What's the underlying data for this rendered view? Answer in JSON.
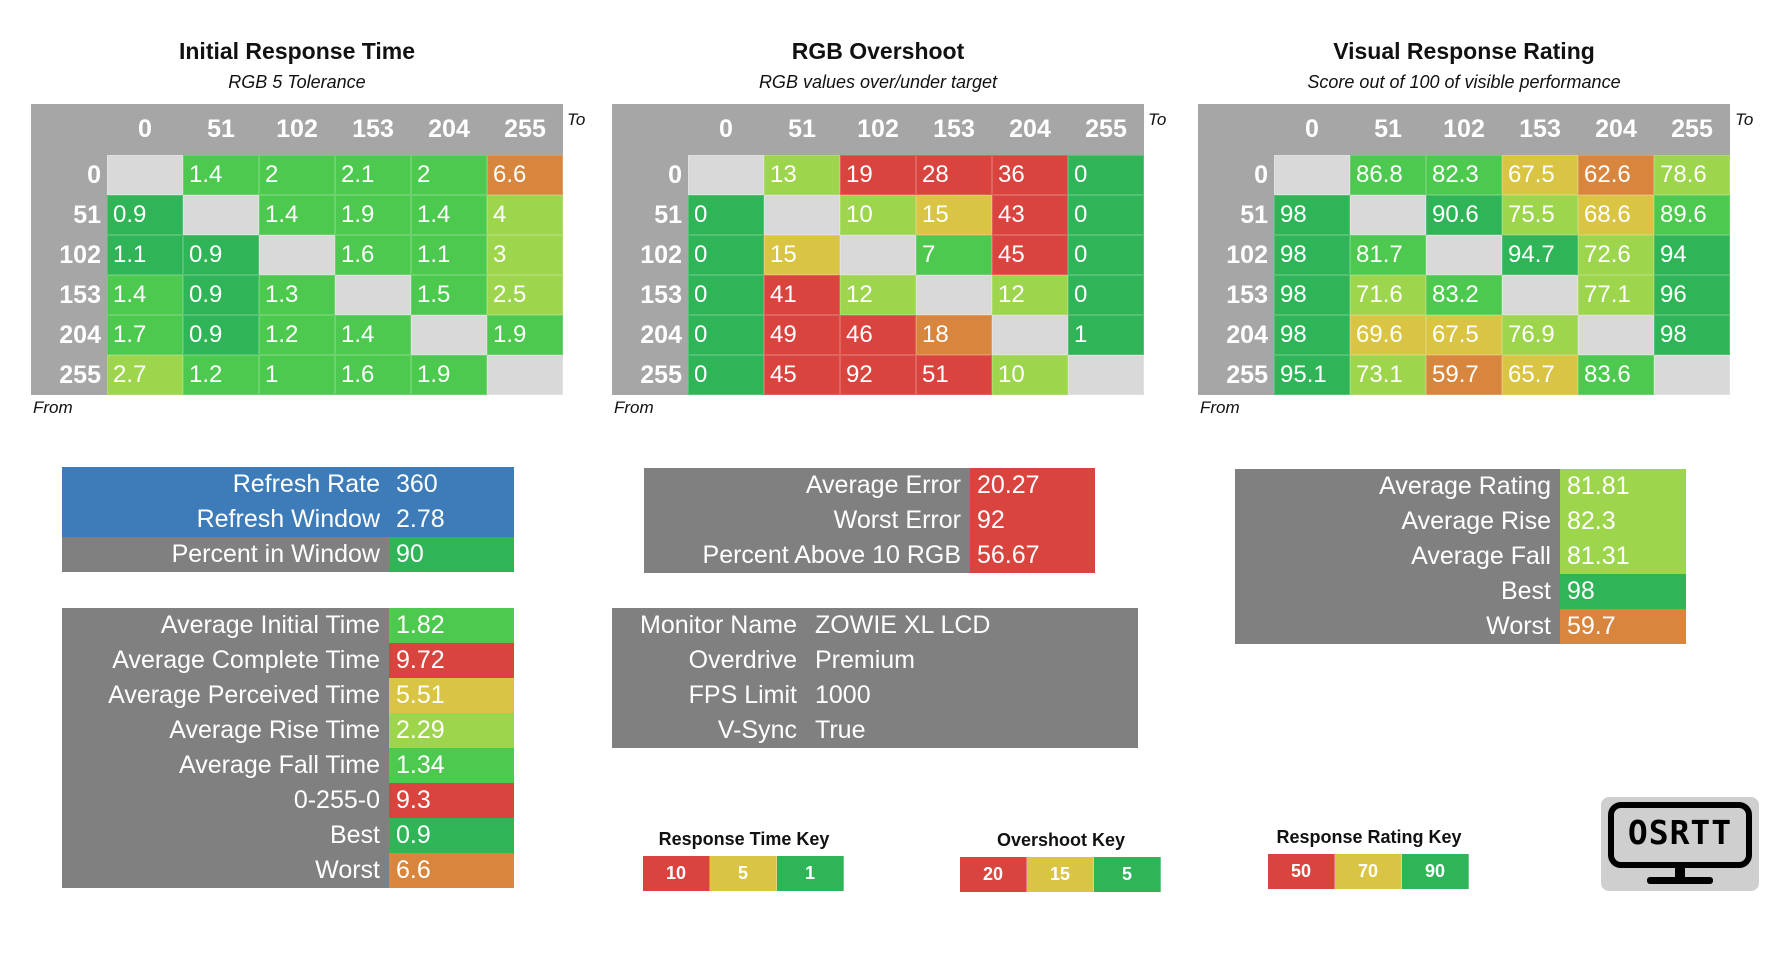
{
  "levels": [
    "0",
    "51",
    "102",
    "153",
    "204",
    "255"
  ],
  "axis": {
    "to": "To",
    "from": "From"
  },
  "colors": {
    "red": "#d9443f",
    "orange": "#d8853e",
    "yellow": "#d9c444",
    "lime": "#9dd54c",
    "green": "#4ec94f",
    "dkgreen": "#2fb457",
    "blue": "#3d7cb8",
    "gray": "#808080",
    "header": "#a6a6a6",
    "diag": "#d9d9d9"
  },
  "chart_data": [
    {
      "type": "heatmap",
      "title": "Initial Response Time",
      "subtitle": "RGB 5 Tolerance",
      "xlabel": "To",
      "ylabel": "From",
      "x": [
        "0",
        "51",
        "102",
        "153",
        "204",
        "255"
      ],
      "y": [
        "0",
        "51",
        "102",
        "153",
        "204",
        "255"
      ],
      "values": [
        [
          "",
          "1.4",
          "2",
          "2.1",
          "2",
          "6.6"
        ],
        [
          "0.9",
          "",
          "1.4",
          "1.9",
          "1.4",
          "4"
        ],
        [
          "1.1",
          "0.9",
          "",
          "1.6",
          "1.1",
          "3"
        ],
        [
          "1.4",
          "0.9",
          "1.3",
          "",
          "1.5",
          "2.5"
        ],
        [
          "1.7",
          "0.9",
          "1.2",
          "1.4",
          "",
          "1.9"
        ],
        [
          "2.7",
          "1.2",
          "1",
          "1.6",
          "1.9",
          ""
        ]
      ],
      "colors": [
        [
          "diag",
          "green",
          "green",
          "green",
          "green",
          "orange"
        ],
        [
          "dkgreen",
          "diag",
          "green",
          "green",
          "green",
          "lime"
        ],
        [
          "dkgreen",
          "dkgreen",
          "diag",
          "green",
          "green",
          "lime"
        ],
        [
          "green",
          "dkgreen",
          "green",
          "diag",
          "green",
          "lime"
        ],
        [
          "green",
          "dkgreen",
          "green",
          "green",
          "diag",
          "green"
        ],
        [
          "lime",
          "green",
          "green",
          "green",
          "green",
          "diag"
        ]
      ]
    },
    {
      "type": "heatmap",
      "title": "RGB Overshoot",
      "subtitle": "RGB values over/under target",
      "xlabel": "To",
      "ylabel": "From",
      "x": [
        "0",
        "51",
        "102",
        "153",
        "204",
        "255"
      ],
      "y": [
        "0",
        "51",
        "102",
        "153",
        "204",
        "255"
      ],
      "values": [
        [
          "",
          "13",
          "19",
          "28",
          "36",
          "0"
        ],
        [
          "0",
          "",
          "10",
          "15",
          "43",
          "0"
        ],
        [
          "0",
          "15",
          "",
          "7",
          "45",
          "0"
        ],
        [
          "0",
          "41",
          "12",
          "",
          "12",
          "0"
        ],
        [
          "0",
          "49",
          "46",
          "18",
          "",
          "1"
        ],
        [
          "0",
          "45",
          "92",
          "51",
          "10",
          ""
        ]
      ],
      "colors": [
        [
          "diag",
          "lime",
          "red",
          "red",
          "red",
          "dkgreen"
        ],
        [
          "dkgreen",
          "diag",
          "lime",
          "yellow",
          "red",
          "dkgreen"
        ],
        [
          "dkgreen",
          "yellow",
          "diag",
          "green",
          "red",
          "dkgreen"
        ],
        [
          "dkgreen",
          "red",
          "lime",
          "diag",
          "lime",
          "dkgreen"
        ],
        [
          "dkgreen",
          "red",
          "red",
          "orange",
          "diag",
          "dkgreen"
        ],
        [
          "dkgreen",
          "red",
          "red",
          "red",
          "lime",
          "diag"
        ]
      ]
    },
    {
      "type": "heatmap",
      "title": "Visual Response Rating",
      "subtitle": "Score out of 100 of visible performance",
      "xlabel": "To",
      "ylabel": "From",
      "x": [
        "0",
        "51",
        "102",
        "153",
        "204",
        "255"
      ],
      "y": [
        "0",
        "51",
        "102",
        "153",
        "204",
        "255"
      ],
      "values": [
        [
          "",
          "86.8",
          "82.3",
          "67.5",
          "62.6",
          "78.6"
        ],
        [
          "98",
          "",
          "90.6",
          "75.5",
          "68.6",
          "89.6"
        ],
        [
          "98",
          "81.7",
          "",
          "94.7",
          "72.6",
          "94"
        ],
        [
          "98",
          "71.6",
          "83.2",
          "",
          "77.1",
          "96"
        ],
        [
          "98",
          "69.6",
          "67.5",
          "76.9",
          "",
          "98"
        ],
        [
          "95.1",
          "73.1",
          "59.7",
          "65.7",
          "83.6",
          ""
        ]
      ],
      "colors": [
        [
          "diag",
          "green",
          "green",
          "yellow",
          "orange",
          "lime"
        ],
        [
          "dkgreen",
          "diag",
          "dkgreen",
          "lime",
          "yellow",
          "green"
        ],
        [
          "dkgreen",
          "green",
          "diag",
          "dkgreen",
          "lime",
          "dkgreen"
        ],
        [
          "dkgreen",
          "lime",
          "green",
          "diag",
          "lime",
          "dkgreen"
        ],
        [
          "dkgreen",
          "yellow",
          "yellow",
          "lime",
          "diag",
          "dkgreen"
        ],
        [
          "dkgreen",
          "lime",
          "orange",
          "yellow",
          "green",
          "diag"
        ]
      ]
    }
  ],
  "refresh": {
    "rows": [
      {
        "label": "Refresh Rate",
        "value": "360",
        "bg": "blue",
        "vbg": "blue"
      },
      {
        "label": "Refresh Window",
        "value": "2.78",
        "bg": "blue",
        "vbg": "blue"
      },
      {
        "label": "Percent in Window",
        "value": "90",
        "bg": "gray",
        "vbg": "dkgreen"
      }
    ]
  },
  "times": {
    "rows": [
      {
        "label": "Average Initial Time",
        "value": "1.82",
        "vbg": "green"
      },
      {
        "label": "Average Complete Time",
        "value": "9.72",
        "vbg": "red"
      },
      {
        "label": "Average Perceived Time",
        "value": "5.51",
        "vbg": "yellow"
      },
      {
        "label": "Average Rise Time",
        "value": "2.29",
        "vbg": "lime"
      },
      {
        "label": "Average Fall Time",
        "value": "1.34",
        "vbg": "green"
      },
      {
        "label": "0-255-0",
        "value": "9.3",
        "vbg": "red"
      },
      {
        "label": "Best",
        "value": "0.9",
        "vbg": "dkgreen"
      },
      {
        "label": "Worst",
        "value": "6.6",
        "vbg": "orange"
      }
    ]
  },
  "overshoot_stats": {
    "rows": [
      {
        "label": "Average Error",
        "value": "20.27",
        "vbg": "red"
      },
      {
        "label": "Worst Error",
        "value": "92",
        "vbg": "red"
      },
      {
        "label": "Percent Above 10 RGB",
        "value": "56.67",
        "vbg": "red"
      }
    ]
  },
  "monitor": {
    "rows": [
      {
        "label": "Monitor Name",
        "value": "ZOWIE XL LCD"
      },
      {
        "label": "Overdrive",
        "value": "Premium"
      },
      {
        "label": "FPS Limit",
        "value": "1000"
      },
      {
        "label": "V-Sync",
        "value": "True"
      }
    ]
  },
  "rating_stats": {
    "rows": [
      {
        "label": "Average Rating",
        "value": "81.81",
        "vbg": "lime"
      },
      {
        "label": "Average Rise",
        "value": "82.3",
        "vbg": "lime"
      },
      {
        "label": "Average Fall",
        "value": "81.31",
        "vbg": "lime"
      },
      {
        "label": "Best",
        "value": "98",
        "vbg": "dkgreen"
      },
      {
        "label": "Worst",
        "value": "59.7",
        "vbg": "orange"
      }
    ]
  },
  "keys": [
    {
      "title": "Response Time Key",
      "items": [
        {
          "label": "10",
          "c": "red"
        },
        {
          "label": "5",
          "c": "yellow"
        },
        {
          "label": "1",
          "c": "dkgreen"
        }
      ]
    },
    {
      "title": "Overshoot Key",
      "items": [
        {
          "label": "20",
          "c": "red"
        },
        {
          "label": "15",
          "c": "yellow"
        },
        {
          "label": "5",
          "c": "dkgreen"
        }
      ]
    },
    {
      "title": "Response Rating Key",
      "items": [
        {
          "label": "50",
          "c": "red"
        },
        {
          "label": "70",
          "c": "yellow"
        },
        {
          "label": "90",
          "c": "dkgreen"
        }
      ]
    }
  ],
  "logo": {
    "text": "OSRTT",
    "icon": "monitor-logo-icon"
  }
}
